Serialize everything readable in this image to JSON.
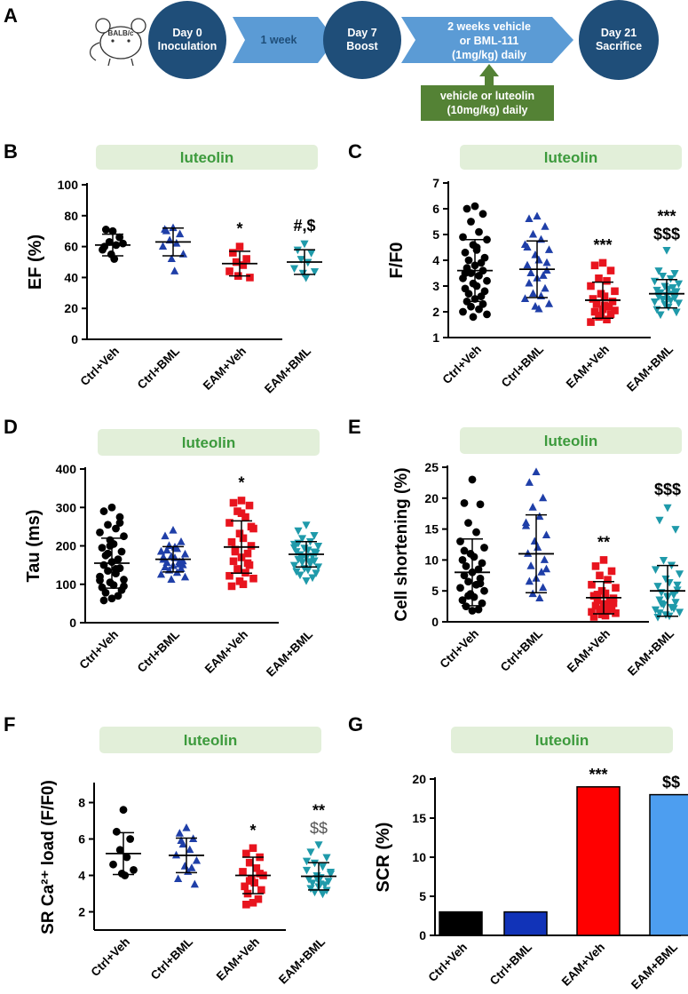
{
  "timeline": {
    "panel_label": "A",
    "mouse_label": "BALB/c",
    "steps": [
      "Day 0",
      "Inoculation",
      "1 week",
      "Day 7",
      "Boost",
      "2 weeks vehicle",
      "or BML-111",
      "(1mg/kg) daily",
      "Day 21",
      "Sacrifice"
    ],
    "luteolin_box": [
      "vehicle or luteolin",
      "(10mg/kg) daily"
    ]
  },
  "colors": {
    "black": "#000000",
    "blue": "#1f3fa8",
    "red": "#e8141e",
    "teal": "#1f9aaa",
    "navy": "#1f4e79",
    "arrow": "#5b9bd5",
    "green_box": "#548235",
    "band": "#e2efd9",
    "band_text": "#3c9a3c",
    "bar_blue": "#1133b8",
    "bar_light_blue": "#4d9ef0"
  },
  "chart_data": [
    {
      "panel": "B",
      "type": "scatter",
      "band_label": "luteolin",
      "categories": [
        "Ctrl+Veh",
        "Ctrl+BML",
        "EAM+Veh",
        "EAM+BML"
      ],
      "ylabel": "EF (%)",
      "ylim": [
        0,
        100
      ],
      "yticks": [
        0,
        20,
        40,
        60,
        80,
        100
      ],
      "annotations": [
        [
          "",
          ""
        ],
        [
          "",
          ""
        ],
        [
          "*",
          ""
        ],
        [
          "#,$",
          ""
        ]
      ],
      "series": [
        {
          "name": "Ctrl+Veh",
          "marker": "circle",
          "color": "#000000",
          "mean": 61,
          "sd": 7,
          "values": [
            70,
            71,
            66,
            63,
            61,
            58,
            62,
            55,
            52,
            60
          ]
        },
        {
          "name": "Ctrl+BML",
          "marker": "triangle-up",
          "color": "#1f3fa8",
          "mean": 63,
          "sd": 9,
          "values": [
            72,
            70,
            68,
            64,
            62,
            60,
            55,
            52,
            44,
            71
          ]
        },
        {
          "name": "EAM+Veh",
          "marker": "square",
          "color": "#e8141e",
          "mean": 49,
          "sd": 8,
          "values": [
            60,
            56,
            52,
            50,
            48,
            44,
            40,
            41
          ]
        },
        {
          "name": "EAM+BML",
          "marker": "triangle-down",
          "color": "#1f9aaa",
          "mean": 50,
          "sd": 8,
          "values": [
            62,
            58,
            56,
            52,
            50,
            46,
            44,
            43,
            40
          ]
        }
      ]
    },
    {
      "panel": "C",
      "type": "scatter",
      "band_label": "luteolin",
      "categories": [
        "Ctrl+Veh",
        "Ctrl+BML",
        "EAM+Veh",
        "EAM+BML"
      ],
      "ylabel": "F/F0",
      "ylim": [
        1,
        7
      ],
      "yticks": [
        1,
        2,
        3,
        4,
        5,
        6,
        7
      ],
      "annotations": [
        [
          "",
          ""
        ],
        [
          "",
          ""
        ],
        [
          "***",
          ""
        ],
        [
          "***",
          "$$$"
        ]
      ],
      "series": [
        {
          "name": "Ctrl+Veh",
          "marker": "circle",
          "color": "#000000",
          "mean": 3.6,
          "sd": 1.2,
          "values": [
            6.1,
            6.0,
            5.8,
            5.5,
            5.1,
            4.9,
            4.8,
            4.6,
            4.5,
            4.3,
            4.1,
            4.0,
            3.9,
            3.8,
            3.7,
            3.6,
            3.5,
            3.4,
            3.3,
            3.2,
            3.1,
            3.0,
            2.9,
            2.8,
            2.7,
            2.6,
            2.5,
            2.4,
            2.3,
            2.2,
            2.1,
            2.0,
            1.9,
            1.8,
            4.4,
            3.5
          ]
        },
        {
          "name": "Ctrl+BML",
          "marker": "triangle-up",
          "color": "#1f3fa8",
          "mean": 3.65,
          "sd": 1.1,
          "values": [
            5.7,
            5.6,
            5.3,
            5.0,
            4.8,
            4.6,
            4.4,
            4.2,
            4.0,
            3.8,
            3.6,
            3.5,
            3.4,
            3.3,
            3.1,
            2.9,
            2.7,
            2.6,
            2.5,
            2.3,
            2.2,
            2.1,
            4.5,
            3.9
          ]
        },
        {
          "name": "EAM+Veh",
          "marker": "square",
          "color": "#e8141e",
          "mean": 2.45,
          "sd": 0.7,
          "values": [
            3.9,
            3.8,
            3.6,
            3.3,
            3.2,
            3.0,
            2.8,
            2.7,
            2.6,
            2.5,
            2.4,
            2.3,
            2.2,
            2.1,
            2.0,
            1.9,
            1.8,
            1.7,
            1.6,
            2.05,
            1.85,
            2.25
          ]
        },
        {
          "name": "EAM+BML",
          "marker": "triangle-down",
          "color": "#1f9aaa",
          "mean": 2.7,
          "sd": 0.55,
          "values": [
            4.4,
            3.6,
            3.5,
            3.4,
            3.3,
            3.2,
            3.1,
            3.0,
            2.9,
            2.85,
            2.8,
            2.75,
            2.7,
            2.65,
            2.6,
            2.55,
            2.5,
            2.45,
            2.4,
            2.35,
            2.3,
            2.2,
            2.1,
            2.0,
            1.9,
            2.95,
            2.5,
            2.65
          ]
        }
      ]
    },
    {
      "panel": "D",
      "type": "scatter",
      "band_label": "luteolin",
      "categories": [
        "Ctrl+Veh",
        "Ctrl+BML",
        "EAM+Veh",
        "EAM+BML"
      ],
      "ylabel": "Tau (ms)",
      "ylim": [
        0,
        400
      ],
      "yticks": [
        0,
        100,
        200,
        300,
        400
      ],
      "annotations": [
        [
          "",
          ""
        ],
        [
          "",
          ""
        ],
        [
          "*",
          ""
        ],
        [
          "",
          ""
        ]
      ],
      "series": [
        {
          "name": "Ctrl+Veh",
          "marker": "circle",
          "color": "#000000",
          "mean": 155,
          "sd": 65,
          "values": [
            300,
            290,
            275,
            255,
            245,
            235,
            225,
            215,
            205,
            195,
            185,
            175,
            165,
            158,
            150,
            142,
            135,
            128,
            120,
            112,
            105,
            98,
            92,
            85,
            78,
            70,
            63,
            58,
            260,
            180,
            140,
            110,
            95,
            200
          ]
        },
        {
          "name": "Ctrl+BML",
          "marker": "triangle-up",
          "color": "#1f3fa8",
          "mean": 165,
          "sd": 33,
          "values": [
            240,
            225,
            210,
            200,
            192,
            185,
            178,
            172,
            168,
            164,
            160,
            156,
            152,
            148,
            144,
            140,
            136,
            130,
            125,
            118,
            112,
            196,
            170,
            150,
            188,
            158
          ]
        },
        {
          "name": "EAM+Veh",
          "marker": "square",
          "color": "#e8141e",
          "mean": 197,
          "sd": 68,
          "values": [
            318,
            312,
            305,
            290,
            275,
            260,
            245,
            232,
            220,
            210,
            200,
            190,
            180,
            170,
            160,
            150,
            140,
            130,
            122,
            115,
            108,
            100,
            95,
            250,
            185,
            155,
            285
          ]
        },
        {
          "name": "EAM+BML",
          "marker": "triangle-down",
          "color": "#1f9aaa",
          "mean": 178,
          "sd": 33,
          "values": [
            255,
            240,
            228,
            220,
            212,
            205,
            200,
            195,
            190,
            186,
            182,
            178,
            174,
            170,
            166,
            162,
            158,
            154,
            150,
            146,
            142,
            138,
            134,
            130,
            125,
            118,
            110,
            208,
            185,
            172,
            160,
            196
          ]
        }
      ]
    },
    {
      "panel": "E",
      "type": "scatter",
      "band_label": "luteolin",
      "categories": [
        "Ctrl+Veh",
        "Ctrl+BML",
        "EAM+Veh",
        "EAM+BML"
      ],
      "ylabel": "Cell shortening (%)",
      "ylim": [
        0,
        25
      ],
      "yticks": [
        0,
        5,
        10,
        15,
        20,
        25
      ],
      "annotations": [
        [
          "",
          ""
        ],
        [
          "",
          ""
        ],
        [
          "**",
          ""
        ],
        [
          "$$$",
          ""
        ]
      ],
      "series": [
        {
          "name": "Ctrl+Veh",
          "marker": "circle",
          "color": "#000000",
          "mean": 8.0,
          "sd": 5.4,
          "values": [
            23,
            19.2,
            19,
            16,
            14.5,
            13,
            12,
            11,
            10.5,
            10,
            9.5,
            9,
            8.5,
            8,
            7.5,
            7,
            6.5,
            6,
            5.5,
            5,
            4.5,
            4,
            3.5,
            3,
            2.5,
            2,
            1.8,
            11.5,
            6.2,
            4.2
          ]
        },
        {
          "name": "Ctrl+BML",
          "marker": "triangle-up",
          "color": "#1f3fa8",
          "mean": 11.0,
          "sd": 6.3,
          "values": [
            24.2,
            22.5,
            20,
            18.5,
            17,
            15.5,
            14,
            13,
            12,
            11,
            10,
            9,
            8,
            7,
            6.5,
            5.5,
            4.5,
            3.8,
            16,
            8.5
          ]
        },
        {
          "name": "EAM+Veh",
          "marker": "square",
          "color": "#e8141e",
          "mean": 3.9,
          "sd": 2.6,
          "values": [
            10,
            9,
            8.2,
            7.5,
            6.8,
            6,
            5.5,
            5,
            4.6,
            4.2,
            3.8,
            3.5,
            3.2,
            2.9,
            2.6,
            2.3,
            2,
            1.8,
            1.6,
            1.4,
            1.2,
            1,
            0.8,
            3,
            4.4,
            2.1
          ]
        },
        {
          "name": "EAM+BML",
          "marker": "triangle-down",
          "color": "#1f9aaa",
          "mean": 5.0,
          "sd": 4.1,
          "values": [
            18.5,
            16.5,
            15,
            10,
            9.2,
            8.5,
            7.8,
            7,
            6.4,
            5.8,
            5.2,
            4.8,
            4.4,
            4,
            3.6,
            3.2,
            2.8,
            2.4,
            2,
            1.6,
            1.2,
            1,
            0.8,
            6,
            3,
            2.2,
            4.2,
            1.5
          ]
        }
      ]
    },
    {
      "panel": "F",
      "type": "scatter",
      "band_label": "luteolin",
      "categories": [
        "Ctrl+Veh",
        "Ctrl+BML",
        "EAM+Veh",
        "EAM+BML"
      ],
      "ylabel": "SR Ca²⁺ load (F/F0)",
      "ylim": [
        1,
        9
      ],
      "yticks": [
        2,
        4,
        6,
        8
      ],
      "annotations": [
        [
          "",
          ""
        ],
        [
          "",
          ""
        ],
        [
          "*",
          ""
        ],
        [
          "**",
          "$$"
        ]
      ],
      "series": [
        {
          "name": "Ctrl+Veh",
          "marker": "circle",
          "color": "#000000",
          "mean": 5.2,
          "sd": 1.15,
          "values": [
            7.6,
            6.4,
            6.0,
            5.4,
            5.0,
            4.6,
            4.3,
            4.1,
            4.0
          ]
        },
        {
          "name": "Ctrl+BML",
          "marker": "triangle-up",
          "color": "#1f3fa8",
          "mean": 5.1,
          "sd": 0.95,
          "values": [
            6.6,
            6.3,
            6.0,
            5.7,
            5.4,
            5.1,
            4.8,
            4.5,
            4.2,
            3.8,
            3.5,
            5.9,
            4.4
          ]
        },
        {
          "name": "EAM+Veh",
          "marker": "square",
          "color": "#e8141e",
          "mean": 4.0,
          "sd": 1.0,
          "values": [
            5.5,
            5.2,
            5.0,
            4.7,
            4.4,
            4.2,
            4.0,
            3.8,
            3.6,
            3.4,
            3.2,
            3.0,
            2.7,
            2.5,
            2.4,
            4.1,
            3.7
          ]
        },
        {
          "name": "EAM+BML",
          "marker": "triangle-down",
          "color": "#1f9aaa",
          "mean": 3.95,
          "sd": 0.75,
          "values": [
            5.7,
            5.3,
            5.0,
            4.7,
            4.5,
            4.3,
            4.1,
            4.0,
            3.9,
            3.8,
            3.7,
            3.6,
            3.5,
            3.4,
            3.3,
            3.2,
            3.1,
            3.0,
            4.8,
            4.2,
            3.85,
            3.55
          ]
        }
      ]
    },
    {
      "panel": "G",
      "type": "bar",
      "band_label": "luteolin",
      "categories": [
        "Ctrl+Veh",
        "Ctrl+BML",
        "EAM+Veh",
        "EAM+BML"
      ],
      "values": [
        3,
        3,
        19,
        18
      ],
      "colors": [
        "#000000",
        "#1133b8",
        "#ff0000",
        "#4d9ef0"
      ],
      "ylabel": "SCR (%)",
      "ylim": [
        0,
        20
      ],
      "yticks": [
        0,
        5,
        10,
        15,
        20
      ],
      "annotations": [
        [
          "",
          ""
        ],
        [
          "",
          ""
        ],
        [
          "***",
          ""
        ],
        [
          "$$",
          ""
        ]
      ]
    }
  ]
}
